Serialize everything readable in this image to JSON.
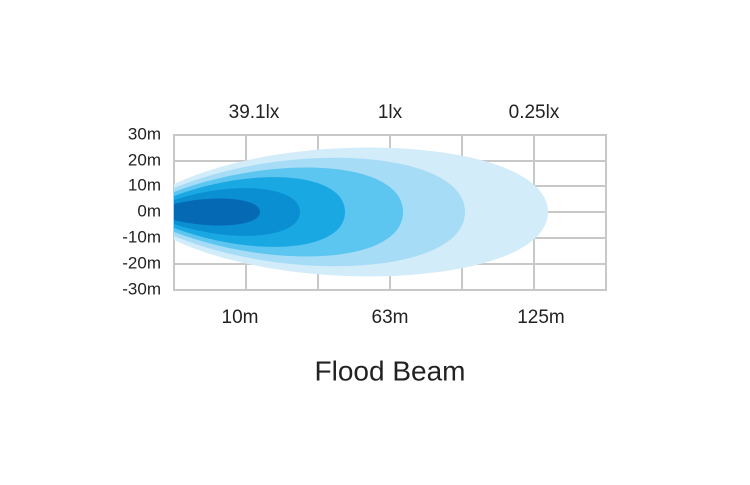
{
  "y_labels": [
    "30m",
    "20m",
    "10m",
    "0m",
    "-10m",
    "-20m",
    "-30m"
  ],
  "lux_labels": [
    "39.1lx",
    "1lx",
    "0.25lx"
  ],
  "distance_labels": [
    "10m",
    "63m",
    "125m"
  ],
  "title": "Flood Beam"
}
